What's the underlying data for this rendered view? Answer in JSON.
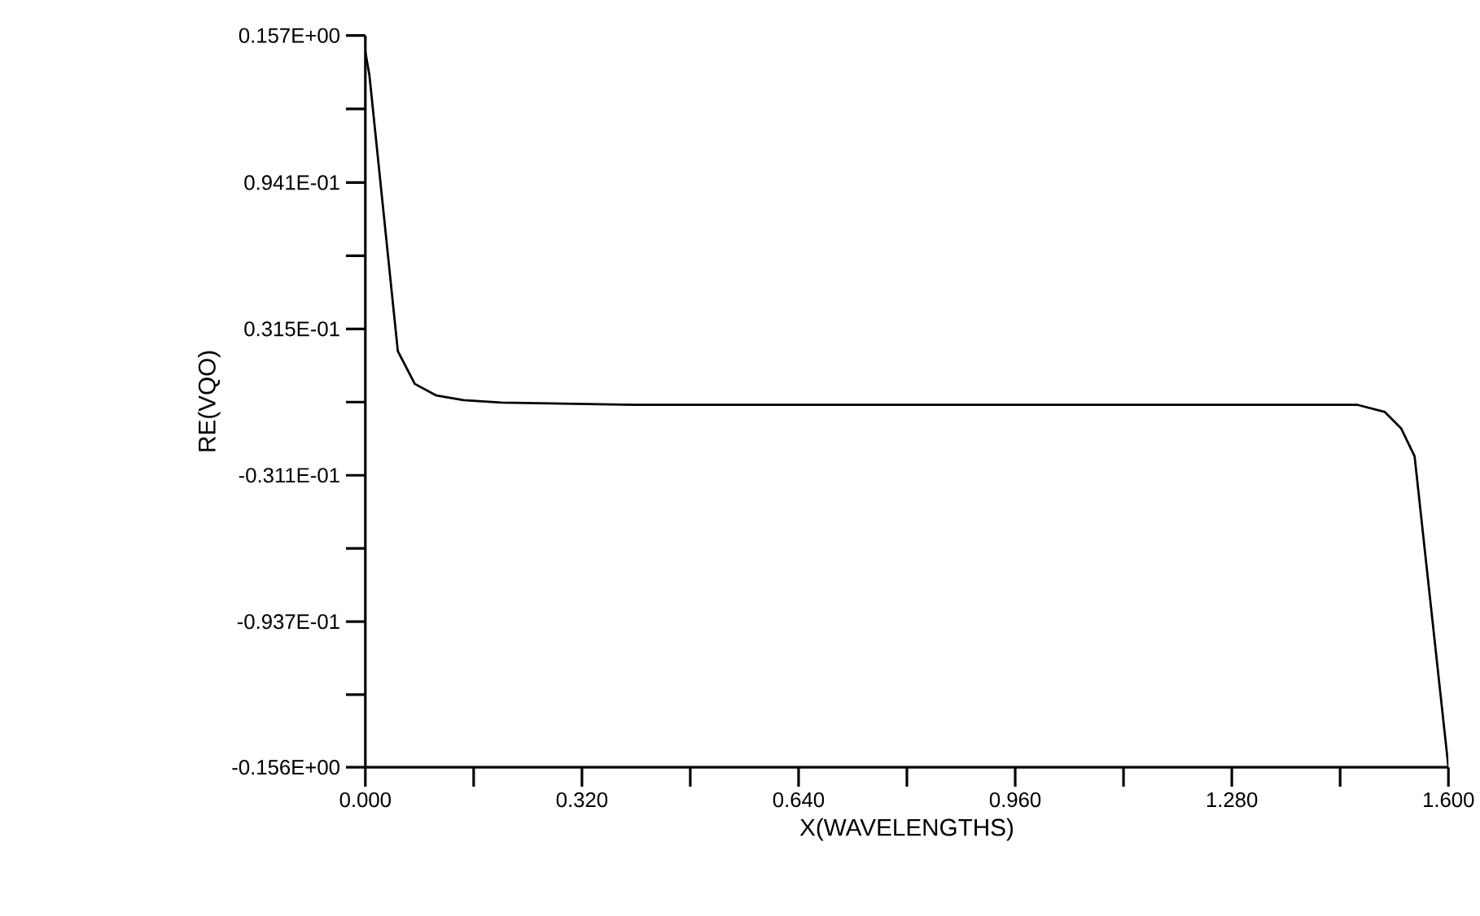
{
  "chart_data": {
    "type": "line",
    "xlabel": "X(WAVELENGTHS)",
    "ylabel": "RE(VQO)",
    "x": [
      0.0,
      0.006,
      0.048,
      0.073,
      0.105,
      0.145,
      0.201,
      0.4,
      0.8,
      1.2,
      1.323,
      1.466,
      1.506,
      1.53,
      1.55,
      1.6
    ],
    "series": [
      {
        "color": "#000000",
        "values": [
          0.15,
          0.14,
          0.022,
          0.008,
          0.003,
          0.001,
          0.0,
          -0.001,
          -0.001,
          -0.001,
          -0.001,
          -0.001,
          -0.004,
          -0.011,
          -0.023,
          -0.156
        ]
      }
    ],
    "xlim": [
      0,
      1.6
    ],
    "ylim": [
      -0.156,
      0.157
    ],
    "xticks": [
      {
        "value": 0,
        "label": "0.000"
      },
      {
        "value": 0.16,
        "label": null
      },
      {
        "value": 0.32,
        "label": "0.320"
      },
      {
        "value": 0.48,
        "label": null
      },
      {
        "value": 0.64,
        "label": "0.640"
      },
      {
        "value": 0.8,
        "label": null
      },
      {
        "value": 0.96,
        "label": "0.960"
      },
      {
        "value": 1.12,
        "label": null
      },
      {
        "value": 1.28,
        "label": "1.280"
      },
      {
        "value": 1.44,
        "label": null
      },
      {
        "value": 1.6,
        "label": "1.600"
      }
    ],
    "yticks": [
      {
        "value": -0.156,
        "label": "-0.156E+00"
      },
      {
        "value": -0.1249,
        "label": null
      },
      {
        "value": -0.0937,
        "label": "-0.937E-01"
      },
      {
        "value": -0.0624,
        "label": null
      },
      {
        "value": -0.0311,
        "label": "-0.311E-01"
      },
      {
        "value": 0.0002,
        "label": null
      },
      {
        "value": 0.0315,
        "label": "0.315E-01"
      },
      {
        "value": 0.0628,
        "label": null
      },
      {
        "value": 0.0941,
        "label": "0.941E-01"
      },
      {
        "value": 0.1256,
        "label": null
      },
      {
        "value": 0.157,
        "label": "0.157E+00"
      }
    ],
    "grid": false,
    "marker": "none",
    "line_style": "solid"
  }
}
